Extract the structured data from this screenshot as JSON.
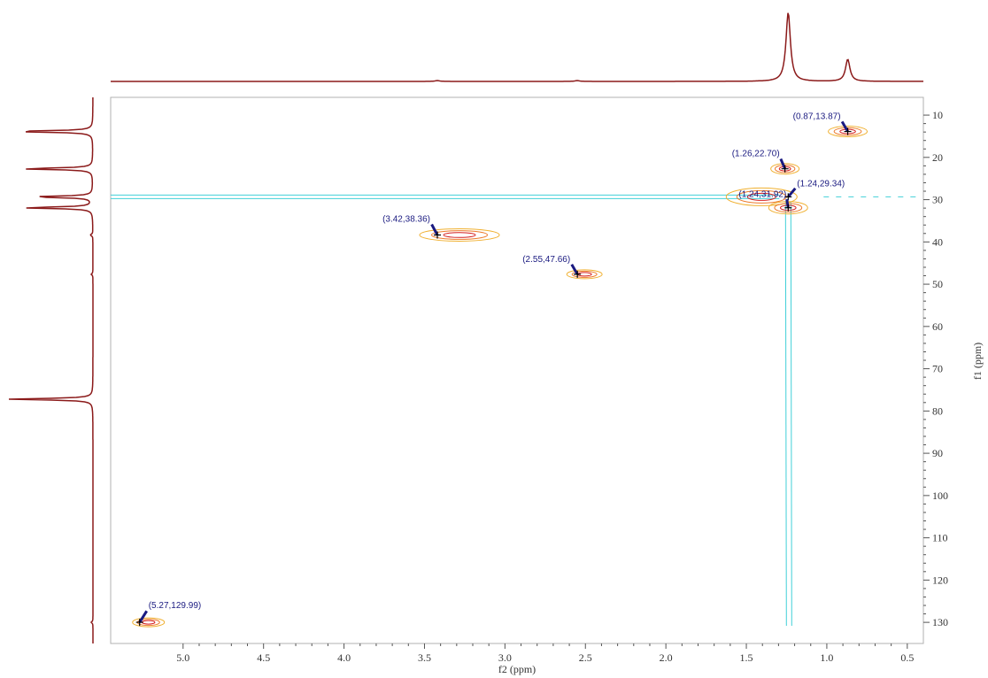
{
  "chart_data": {
    "type": "nmr2d",
    "xlabel": "f2 (ppm)",
    "ylabel": "f1 (ppm)",
    "xlim": [
      5.45,
      0.4
    ],
    "ylim": [
      5.8,
      135
    ],
    "xticks": [
      {
        "value": 5,
        "label": "5.0"
      },
      4.5,
      {
        "value": 4,
        "label": "4.0"
      },
      3.5,
      {
        "value": 3,
        "label": "3.0"
      },
      2.5,
      {
        "value": 2,
        "label": "2.0"
      },
      1.5,
      {
        "value": 1,
        "label": "1.0"
      },
      0.5
    ],
    "yticks": [
      10,
      20,
      30,
      40,
      50,
      60,
      70,
      80,
      90,
      100,
      110,
      120,
      130
    ],
    "peaks": [
      {
        "x": 0.87,
        "y": 13.87,
        "label": "(0.87,13.87)"
      },
      {
        "x": 1.26,
        "y": 22.7,
        "label": "(1.26,22.70)"
      },
      {
        "x": 1.24,
        "y": 29.34,
        "label": "(1.24,29.34)"
      },
      {
        "x": 1.24,
        "y": 31.92,
        "label": "(1.24,31.92)"
      },
      {
        "x": 3.42,
        "y": 38.36,
        "label": "(3.42,38.36)"
      },
      {
        "x": 2.55,
        "y": 47.66,
        "label": "(2.55,47.66)"
      },
      {
        "x": 5.27,
        "y": 129.99,
        "label": "(5.27,129.99)"
      }
    ],
    "contour_colors": [
      "#f0b030",
      "#ec7a2a",
      "#d42020"
    ],
    "noise_color": "#40d0d8",
    "trace_color": "#8b1a1a",
    "marker_color": "#1a1a80"
  }
}
